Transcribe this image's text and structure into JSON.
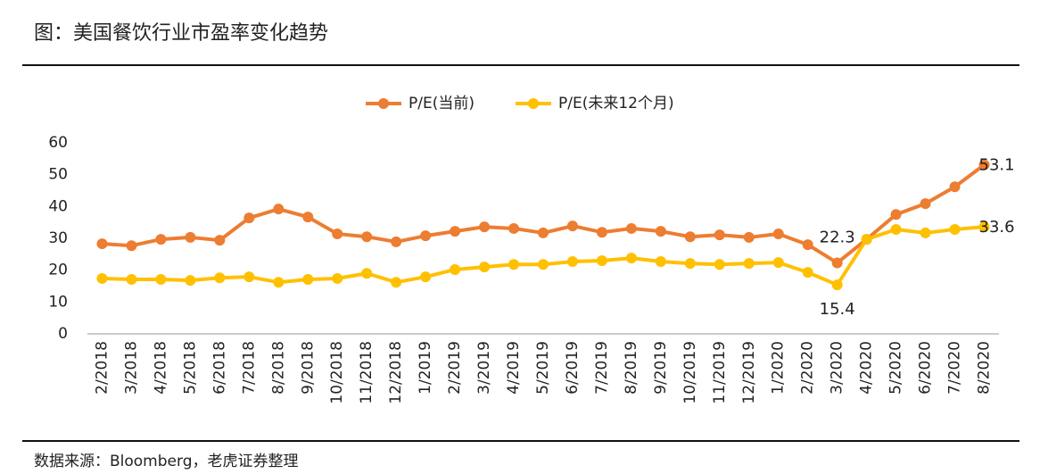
{
  "chart_data": {
    "type": "line",
    "title": "图：美国餐饮行业市盈率变化趋势",
    "source": "数据来源：Bloomberg，老虎证券整理",
    "categories": [
      "2/2018",
      "3/2018",
      "4/2018",
      "5/2018",
      "6/2018",
      "7/2018",
      "8/2018",
      "9/2018",
      "10/2018",
      "11/2018",
      "12/2018",
      "1/2019",
      "2/2019",
      "3/2019",
      "4/2019",
      "5/2019",
      "6/2019",
      "7/2019",
      "8/2019",
      "9/2019",
      "10/2019",
      "11/2019",
      "12/2019",
      "1/2020",
      "2/2020",
      "3/2020",
      "4/2020",
      "5/2020",
      "6/2020",
      "7/2020",
      "8/2020"
    ],
    "series": [
      {
        "name": "P/E(当前)",
        "color": "#ED7D31",
        "values": [
          28.3,
          27.7,
          29.7,
          30.3,
          29.4,
          36.4,
          39.2,
          36.7,
          31.4,
          30.5,
          28.9,
          30.8,
          32.2,
          33.6,
          33.1,
          31.7,
          33.9,
          31.9,
          33.1,
          32.2,
          30.5,
          31.1,
          30.3,
          31.4,
          28.0,
          22.3,
          29.7,
          37.5,
          40.9,
          46.2,
          53.1
        ],
        "value_labels": [
          null,
          null,
          null,
          null,
          null,
          null,
          null,
          null,
          null,
          null,
          null,
          null,
          null,
          null,
          null,
          null,
          null,
          null,
          null,
          null,
          null,
          null,
          null,
          null,
          null,
          "22.3",
          null,
          null,
          null,
          null,
          "53.1"
        ]
      },
      {
        "name": "P/E(未来12个月)",
        "color": "#FFC000",
        "values": [
          17.4,
          17.1,
          17.1,
          16.8,
          17.6,
          17.9,
          16.2,
          17.1,
          17.4,
          19.0,
          16.2,
          17.9,
          20.2,
          21.0,
          21.8,
          21.8,
          22.7,
          23.0,
          23.8,
          22.7,
          22.1,
          21.8,
          22.1,
          22.4,
          19.3,
          15.4,
          29.7,
          32.8,
          31.7,
          32.8,
          33.6
        ],
        "value_labels": [
          null,
          null,
          null,
          null,
          null,
          null,
          null,
          null,
          null,
          null,
          null,
          null,
          null,
          null,
          null,
          null,
          null,
          null,
          null,
          null,
          null,
          null,
          null,
          null,
          null,
          "15.4",
          null,
          null,
          null,
          null,
          "33.6"
        ]
      }
    ],
    "ylim": [
      0,
      60
    ],
    "yticks": [
      0,
      10,
      20,
      30,
      40,
      50,
      60
    ],
    "grid": false
  }
}
